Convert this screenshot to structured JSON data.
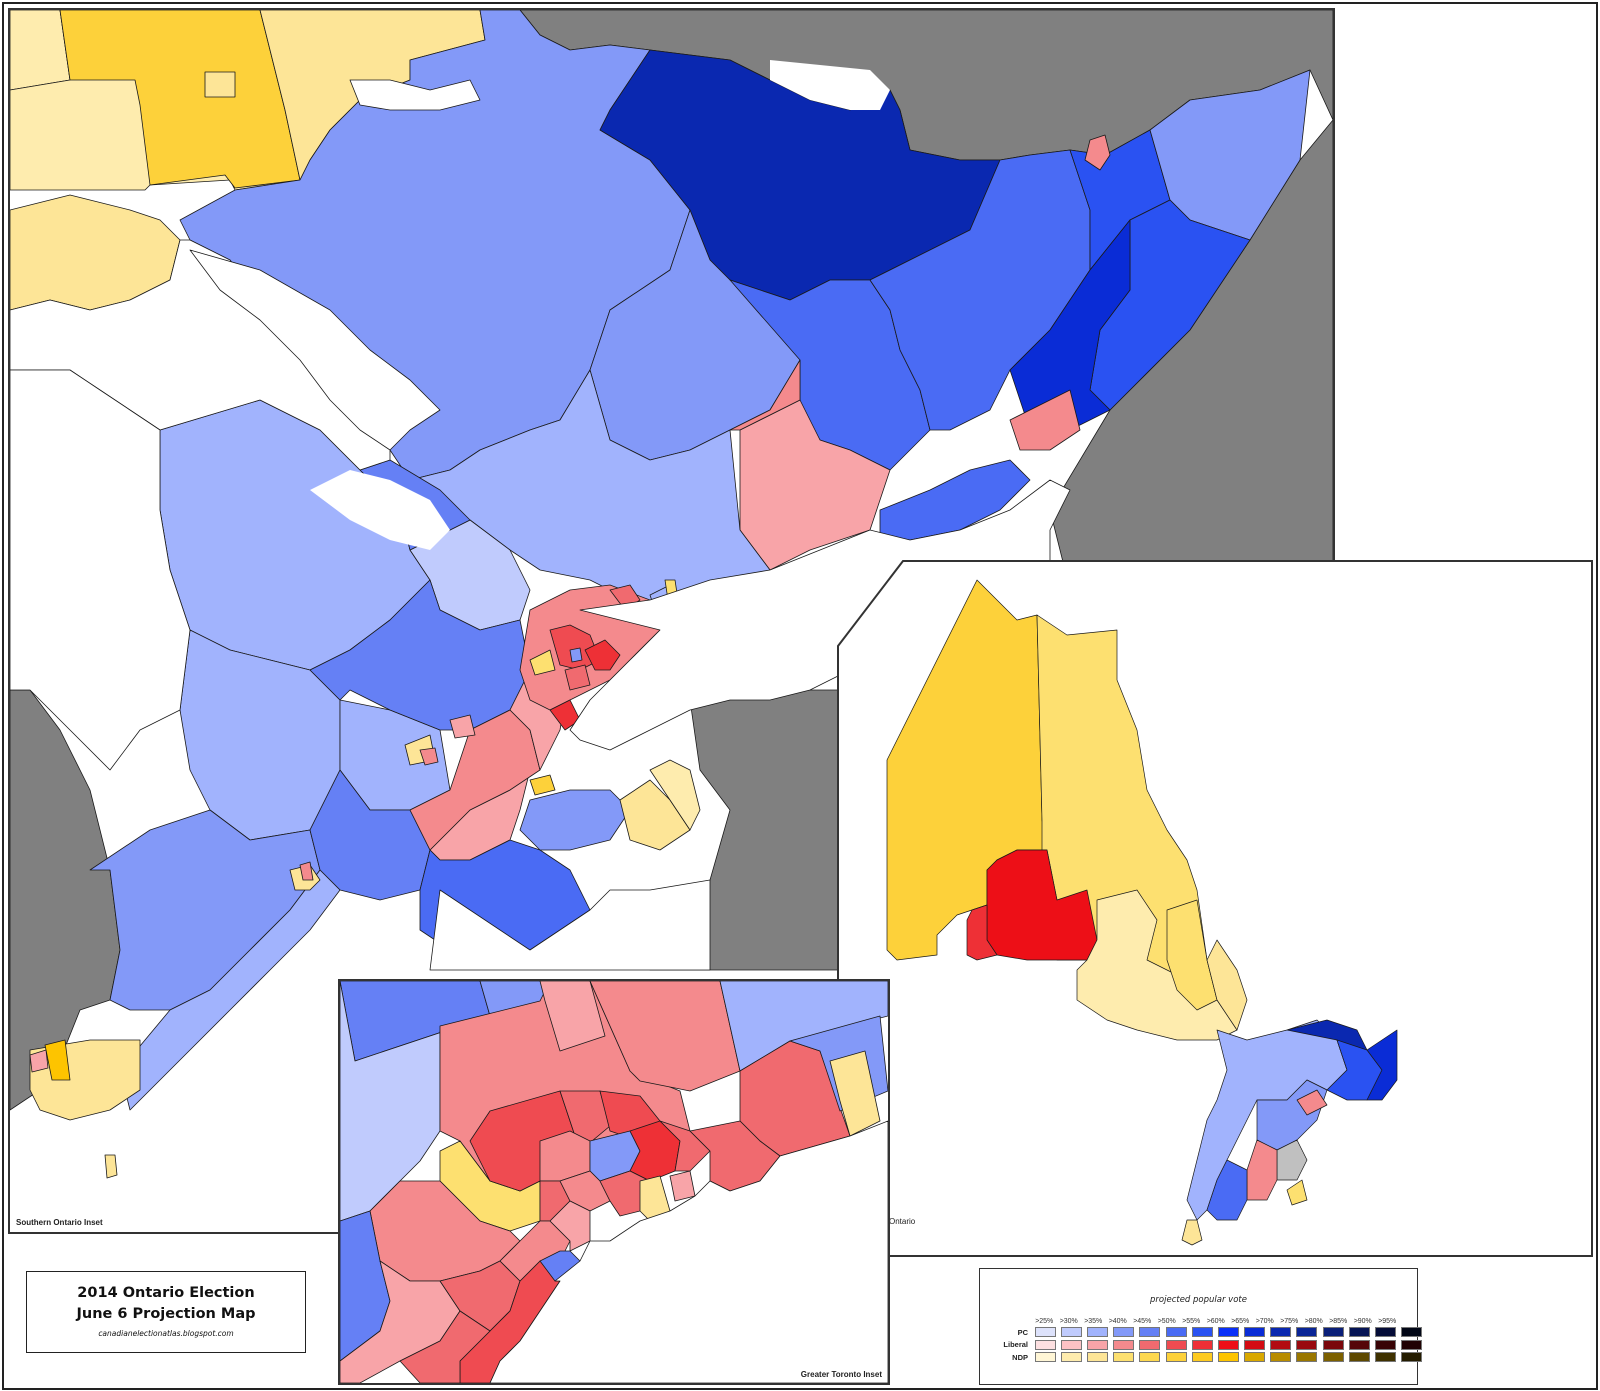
{
  "title": {
    "line1": "2014 Ontario Election",
    "line2": "June 6 Projection Map",
    "credit": "canadianelectionatlas.blogspot.com"
  },
  "insets": {
    "southern": {
      "label": "Southern Ontario Inset"
    },
    "ontario": {
      "label": "Ontario"
    },
    "gta": {
      "label": "Greater Toronto Inset"
    }
  },
  "colors": {
    "water": "#ffffff",
    "foreign_land": "#808080",
    "border": "#1a1a1a",
    "undecided": "#c0c0c0"
  },
  "legend": {
    "title": "projected popular vote",
    "thresholds": [
      ">25%",
      ">30%",
      ">35%",
      ">40%",
      ">45%",
      ">50%",
      ">55%",
      ">60%",
      ">65%",
      ">70%",
      ">75%",
      ">80%",
      ">85%",
      ">90%",
      ">95%"
    ],
    "parties": [
      {
        "name": "PC",
        "colors": [
          "#dde2fb",
          "#c0cbfd",
          "#a1b3fd",
          "#8399f8",
          "#6580f5",
          "#4a6bf4",
          "#2a52f2",
          "#0a2ff8",
          "#0a2cd6",
          "#0a28b0",
          "#0a2596",
          "#0a1f78",
          "#061455",
          "#040c37",
          "#020716"
        ]
      },
      {
        "name": "Liberal",
        "colors": [
          "#fde0e1",
          "#fcc2c4",
          "#f8a4a8",
          "#f48a8d",
          "#f06a6f",
          "#ef4b51",
          "#ee3036",
          "#ed0f17",
          "#d30c13",
          "#b20c11",
          "#990a0f",
          "#7a070b",
          "#550509",
          "#380305",
          "#200203"
        ]
      },
      {
        "name": "NDP",
        "colors": [
          "#fff6d6",
          "#feecae",
          "#fde597",
          "#fde070",
          "#fdd84f",
          "#fdd13a",
          "#fdca20",
          "#fdc400",
          "#d9a800",
          "#b88c00",
          "#9a7700",
          "#7c6000",
          "#5d4800",
          "#3f3100",
          "#241c00"
        ]
      }
    ]
  },
  "chart_data": {
    "type": "choropleth",
    "title": "2014 Ontario Election June 6 Projection Map",
    "legend_title": "projected popular vote",
    "legend_position": "bottom-right",
    "parties": [
      "PC",
      "Liberal",
      "NDP"
    ],
    "bins": [
      ">25%",
      ">30%",
      ">35%",
      ">40%",
      ">45%",
      ">50%",
      ">55%",
      ">60%",
      ">65%",
      ">70%",
      ">75%",
      ">80%",
      ">85%",
      ">90%",
      ">95%"
    ],
    "panels": [
      "Southern Ontario Inset",
      "Ontario",
      "Greater Toronto Inset"
    ],
    "regions_summary": {
      "northwest_ontario": "NDP / Liberal (Thunder Bay area red)",
      "northeast_ontario": "NDP",
      "eastern_ontario": "PC (strong, >55-65%)",
      "central_southwestern_ontario": "PC",
      "toronto_core": "Liberal (most ridings >40-60%)",
      "hamilton_niagara": "NDP / Liberal mix",
      "windsor": "NDP"
    }
  }
}
